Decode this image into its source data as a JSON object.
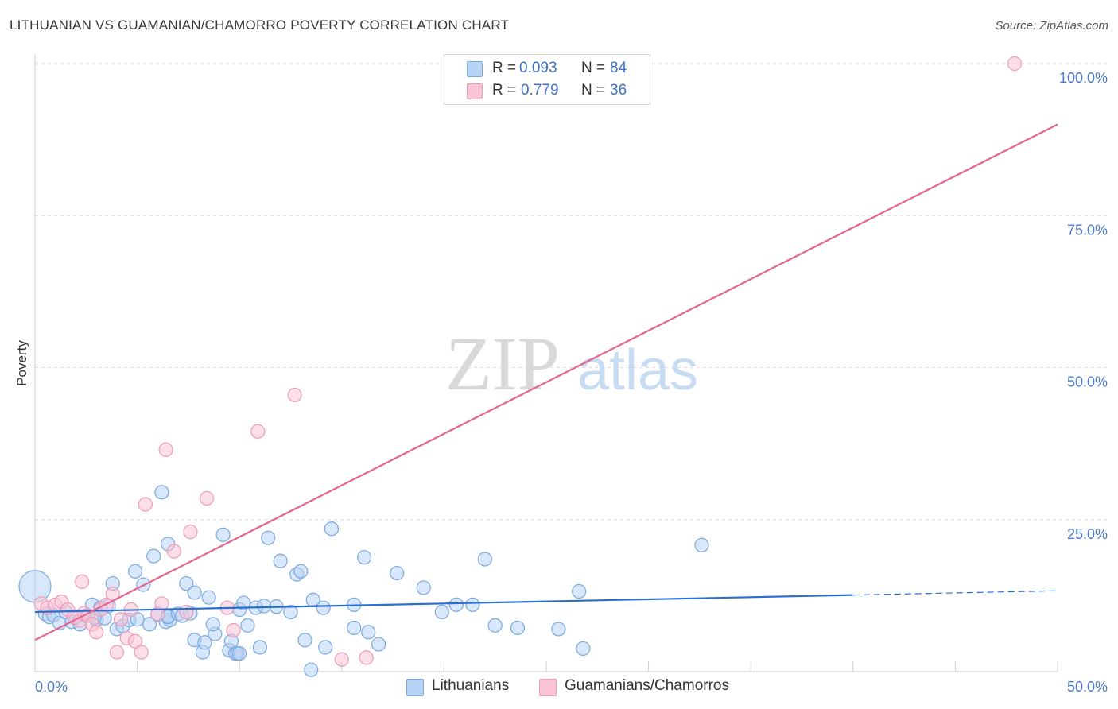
{
  "header": {
    "title": "LITHUANIAN VS GUAMANIAN/CHAMORRO POVERTY CORRELATION CHART",
    "source": "Source: ZipAtlas.com"
  },
  "watermark": {
    "zip": "ZIP",
    "atlas": "atlas"
  },
  "legend": {
    "series1": {
      "r_label": "R =",
      "r_value": "0.093",
      "n_label": "N =",
      "n_value": "84"
    },
    "series2": {
      "r_label": "R =",
      "r_value": "0.779",
      "n_label": "N =",
      "n_value": "36"
    }
  },
  "bottom_legend": {
    "series1": "Lithuanians",
    "series2": "Guamanians/Chamorros"
  },
  "colors": {
    "blue_fill": "#b8d4f5",
    "blue_stroke": "#7aa8e0",
    "blue_line": "#2a6fcf",
    "pink_fill": "#f9c4d6",
    "pink_stroke": "#ee9ab8",
    "pink_line": "#e36592",
    "grid": "#dcdcdc",
    "tick_text": "#4a7ac8"
  },
  "chart_data": {
    "type": "scatter",
    "title": "LITHUANIAN VS GUAMANIAN/CHAMORRO POVERTY CORRELATION CHART",
    "xlabel": "",
    "ylabel": "Poverty",
    "xlim": [
      0,
      50
    ],
    "ylim": [
      0,
      100
    ],
    "x_tick_labels": [
      {
        "value": 0,
        "label": "0.0%"
      },
      {
        "value": 50,
        "label": "50.0%"
      }
    ],
    "y_tick_labels": [
      {
        "value": 25,
        "label": "25.0%"
      },
      {
        "value": 50,
        "label": "50.0%"
      },
      {
        "value": 75,
        "label": "75.0%"
      },
      {
        "value": 100,
        "label": "100.0%"
      }
    ],
    "series": [
      {
        "name": "Lithuanians",
        "R": 0.093,
        "N": 84,
        "trend": {
          "x": [
            0,
            40
          ],
          "y": [
            9.8,
            12.6
          ],
          "dashed_to_x": 50,
          "dashed_to_y": 13.3
        },
        "points": [
          {
            "x": 0.0,
            "y": 14.0,
            "big": true
          },
          {
            "x": 0.5,
            "y": 9.5
          },
          {
            "x": 0.7,
            "y": 9.0
          },
          {
            "x": 0.9,
            "y": 9.3
          },
          {
            "x": 1.2,
            "y": 8.0
          },
          {
            "x": 1.5,
            "y": 9.8
          },
          {
            "x": 1.8,
            "y": 8.2
          },
          {
            "x": 2.0,
            "y": 9.0
          },
          {
            "x": 2.2,
            "y": 7.8
          },
          {
            "x": 2.5,
            "y": 9.2
          },
          {
            "x": 2.8,
            "y": 11.0
          },
          {
            "x": 3.0,
            "y": 8.5
          },
          {
            "x": 3.2,
            "y": 10.5
          },
          {
            "x": 3.4,
            "y": 8.8
          },
          {
            "x": 3.6,
            "y": 10.8
          },
          {
            "x": 3.8,
            "y": 14.5
          },
          {
            "x": 4.0,
            "y": 7.0
          },
          {
            "x": 4.3,
            "y": 7.5
          },
          {
            "x": 4.6,
            "y": 8.5
          },
          {
            "x": 4.9,
            "y": 16.5
          },
          {
            "x": 5.0,
            "y": 8.6
          },
          {
            "x": 5.3,
            "y": 14.3
          },
          {
            "x": 5.6,
            "y": 7.8
          },
          {
            "x": 5.8,
            "y": 19.0
          },
          {
            "x": 6.0,
            "y": 9.4
          },
          {
            "x": 6.2,
            "y": 29.5
          },
          {
            "x": 6.4,
            "y": 8.2
          },
          {
            "x": 6.6,
            "y": 8.5
          },
          {
            "x": 6.5,
            "y": 9.2
          },
          {
            "x": 6.5,
            "y": 9.0
          },
          {
            "x": 6.5,
            "y": 21.0
          },
          {
            "x": 7.0,
            "y": 9.5
          },
          {
            "x": 7.2,
            "y": 9.2
          },
          {
            "x": 7.4,
            "y": 14.5
          },
          {
            "x": 7.6,
            "y": 9.6
          },
          {
            "x": 7.8,
            "y": 5.2
          },
          {
            "x": 7.8,
            "y": 13.0
          },
          {
            "x": 8.2,
            "y": 3.2
          },
          {
            "x": 8.3,
            "y": 4.8
          },
          {
            "x": 8.5,
            "y": 12.2
          },
          {
            "x": 8.8,
            "y": 6.2
          },
          {
            "x": 8.7,
            "y": 7.8
          },
          {
            "x": 9.2,
            "y": 22.5
          },
          {
            "x": 9.5,
            "y": 3.5
          },
          {
            "x": 9.6,
            "y": 5.0
          },
          {
            "x": 9.8,
            "y": 3.0
          },
          {
            "x": 9.9,
            "y": 3.0
          },
          {
            "x": 10.0,
            "y": 3.0
          },
          {
            "x": 10.0,
            "y": 10.2
          },
          {
            "x": 10.2,
            "y": 11.3
          },
          {
            "x": 10.4,
            "y": 7.6
          },
          {
            "x": 10.8,
            "y": 10.5
          },
          {
            "x": 11.0,
            "y": 4.0
          },
          {
            "x": 11.2,
            "y": 10.8
          },
          {
            "x": 11.4,
            "y": 22.0
          },
          {
            "x": 11.8,
            "y": 10.7
          },
          {
            "x": 12.0,
            "y": 18.2
          },
          {
            "x": 12.5,
            "y": 9.8
          },
          {
            "x": 12.8,
            "y": 16.0
          },
          {
            "x": 13.0,
            "y": 16.5
          },
          {
            "x": 13.2,
            "y": 5.2
          },
          {
            "x": 13.5,
            "y": 0.3
          },
          {
            "x": 13.6,
            "y": 11.8
          },
          {
            "x": 14.1,
            "y": 10.5
          },
          {
            "x": 14.2,
            "y": 4.0
          },
          {
            "x": 14.5,
            "y": 23.5
          },
          {
            "x": 15.6,
            "y": 7.2
          },
          {
            "x": 15.6,
            "y": 11.0
          },
          {
            "x": 16.1,
            "y": 18.8
          },
          {
            "x": 16.3,
            "y": 6.5
          },
          {
            "x": 16.8,
            "y": 4.5
          },
          {
            "x": 17.7,
            "y": 16.2
          },
          {
            "x": 19.0,
            "y": 13.8
          },
          {
            "x": 19.9,
            "y": 9.8
          },
          {
            "x": 20.6,
            "y": 11.0
          },
          {
            "x": 21.4,
            "y": 11.0
          },
          {
            "x": 22.0,
            "y": 18.5
          },
          {
            "x": 22.5,
            "y": 7.6
          },
          {
            "x": 23.6,
            "y": 7.2
          },
          {
            "x": 25.6,
            "y": 7.0
          },
          {
            "x": 26.6,
            "y": 13.2
          },
          {
            "x": 26.8,
            "y": 3.8
          },
          {
            "x": 32.6,
            "y": 20.8
          },
          {
            "x": 2.9,
            "y": 8.9
          }
        ]
      },
      {
        "name": "Guamanians/Chamorros",
        "R": 0.779,
        "N": 36,
        "trend": {
          "x": [
            0,
            50
          ],
          "y": [
            5.2,
            90.0
          ]
        },
        "points": [
          {
            "x": 0.3,
            "y": 11.2
          },
          {
            "x": 0.6,
            "y": 10.5
          },
          {
            "x": 1.0,
            "y": 11.0
          },
          {
            "x": 1.3,
            "y": 11.5
          },
          {
            "x": 1.6,
            "y": 10.2
          },
          {
            "x": 1.9,
            "y": 9.0
          },
          {
            "x": 2.2,
            "y": 8.4
          },
          {
            "x": 2.3,
            "y": 14.8
          },
          {
            "x": 2.4,
            "y": 9.6
          },
          {
            "x": 2.6,
            "y": 9.2
          },
          {
            "x": 2.8,
            "y": 7.8
          },
          {
            "x": 3.0,
            "y": 6.5
          },
          {
            "x": 3.2,
            "y": 10.2
          },
          {
            "x": 3.5,
            "y": 11.0
          },
          {
            "x": 3.8,
            "y": 12.8
          },
          {
            "x": 4.0,
            "y": 3.2
          },
          {
            "x": 4.2,
            "y": 8.6
          },
          {
            "x": 4.5,
            "y": 5.5
          },
          {
            "x": 4.7,
            "y": 10.2
          },
          {
            "x": 4.9,
            "y": 5.0
          },
          {
            "x": 5.2,
            "y": 3.2
          },
          {
            "x": 5.4,
            "y": 27.5
          },
          {
            "x": 6.0,
            "y": 9.5
          },
          {
            "x": 6.2,
            "y": 11.2
          },
          {
            "x": 6.4,
            "y": 36.5
          },
          {
            "x": 6.8,
            "y": 19.8
          },
          {
            "x": 7.4,
            "y": 9.8
          },
          {
            "x": 7.6,
            "y": 23.0
          },
          {
            "x": 8.4,
            "y": 28.5
          },
          {
            "x": 9.4,
            "y": 10.5
          },
          {
            "x": 9.7,
            "y": 6.8
          },
          {
            "x": 10.9,
            "y": 39.5
          },
          {
            "x": 12.7,
            "y": 45.5
          },
          {
            "x": 15.0,
            "y": 2.0
          },
          {
            "x": 16.2,
            "y": 2.3
          },
          {
            "x": 47.9,
            "y": 100.0
          }
        ]
      }
    ]
  }
}
